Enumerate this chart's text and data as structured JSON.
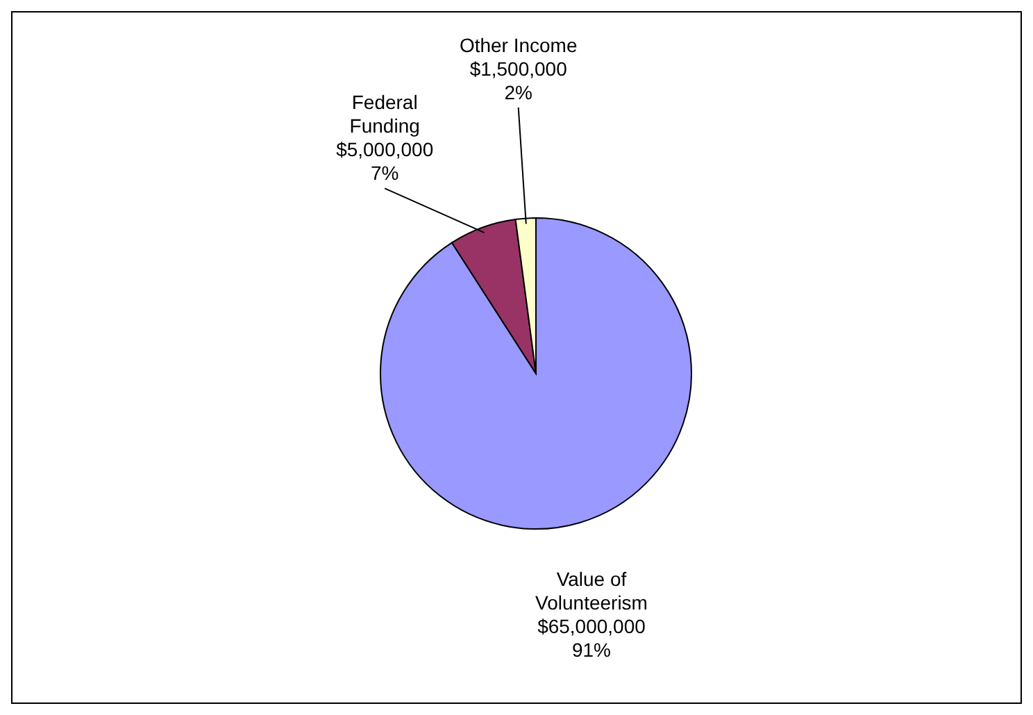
{
  "chart_data": {
    "type": "pie",
    "categories": [
      "Value of Volunteerism",
      "Federal Funding",
      "Other Income"
    ],
    "values": [
      65000000,
      5000000,
      1500000
    ],
    "colors": [
      "#9999ff",
      "#993366",
      "#ffffcc"
    ],
    "value_labels": [
      "$65,000,000 91%",
      "$5,000,000 7%",
      "$1,500,000 2%"
    ]
  }
}
